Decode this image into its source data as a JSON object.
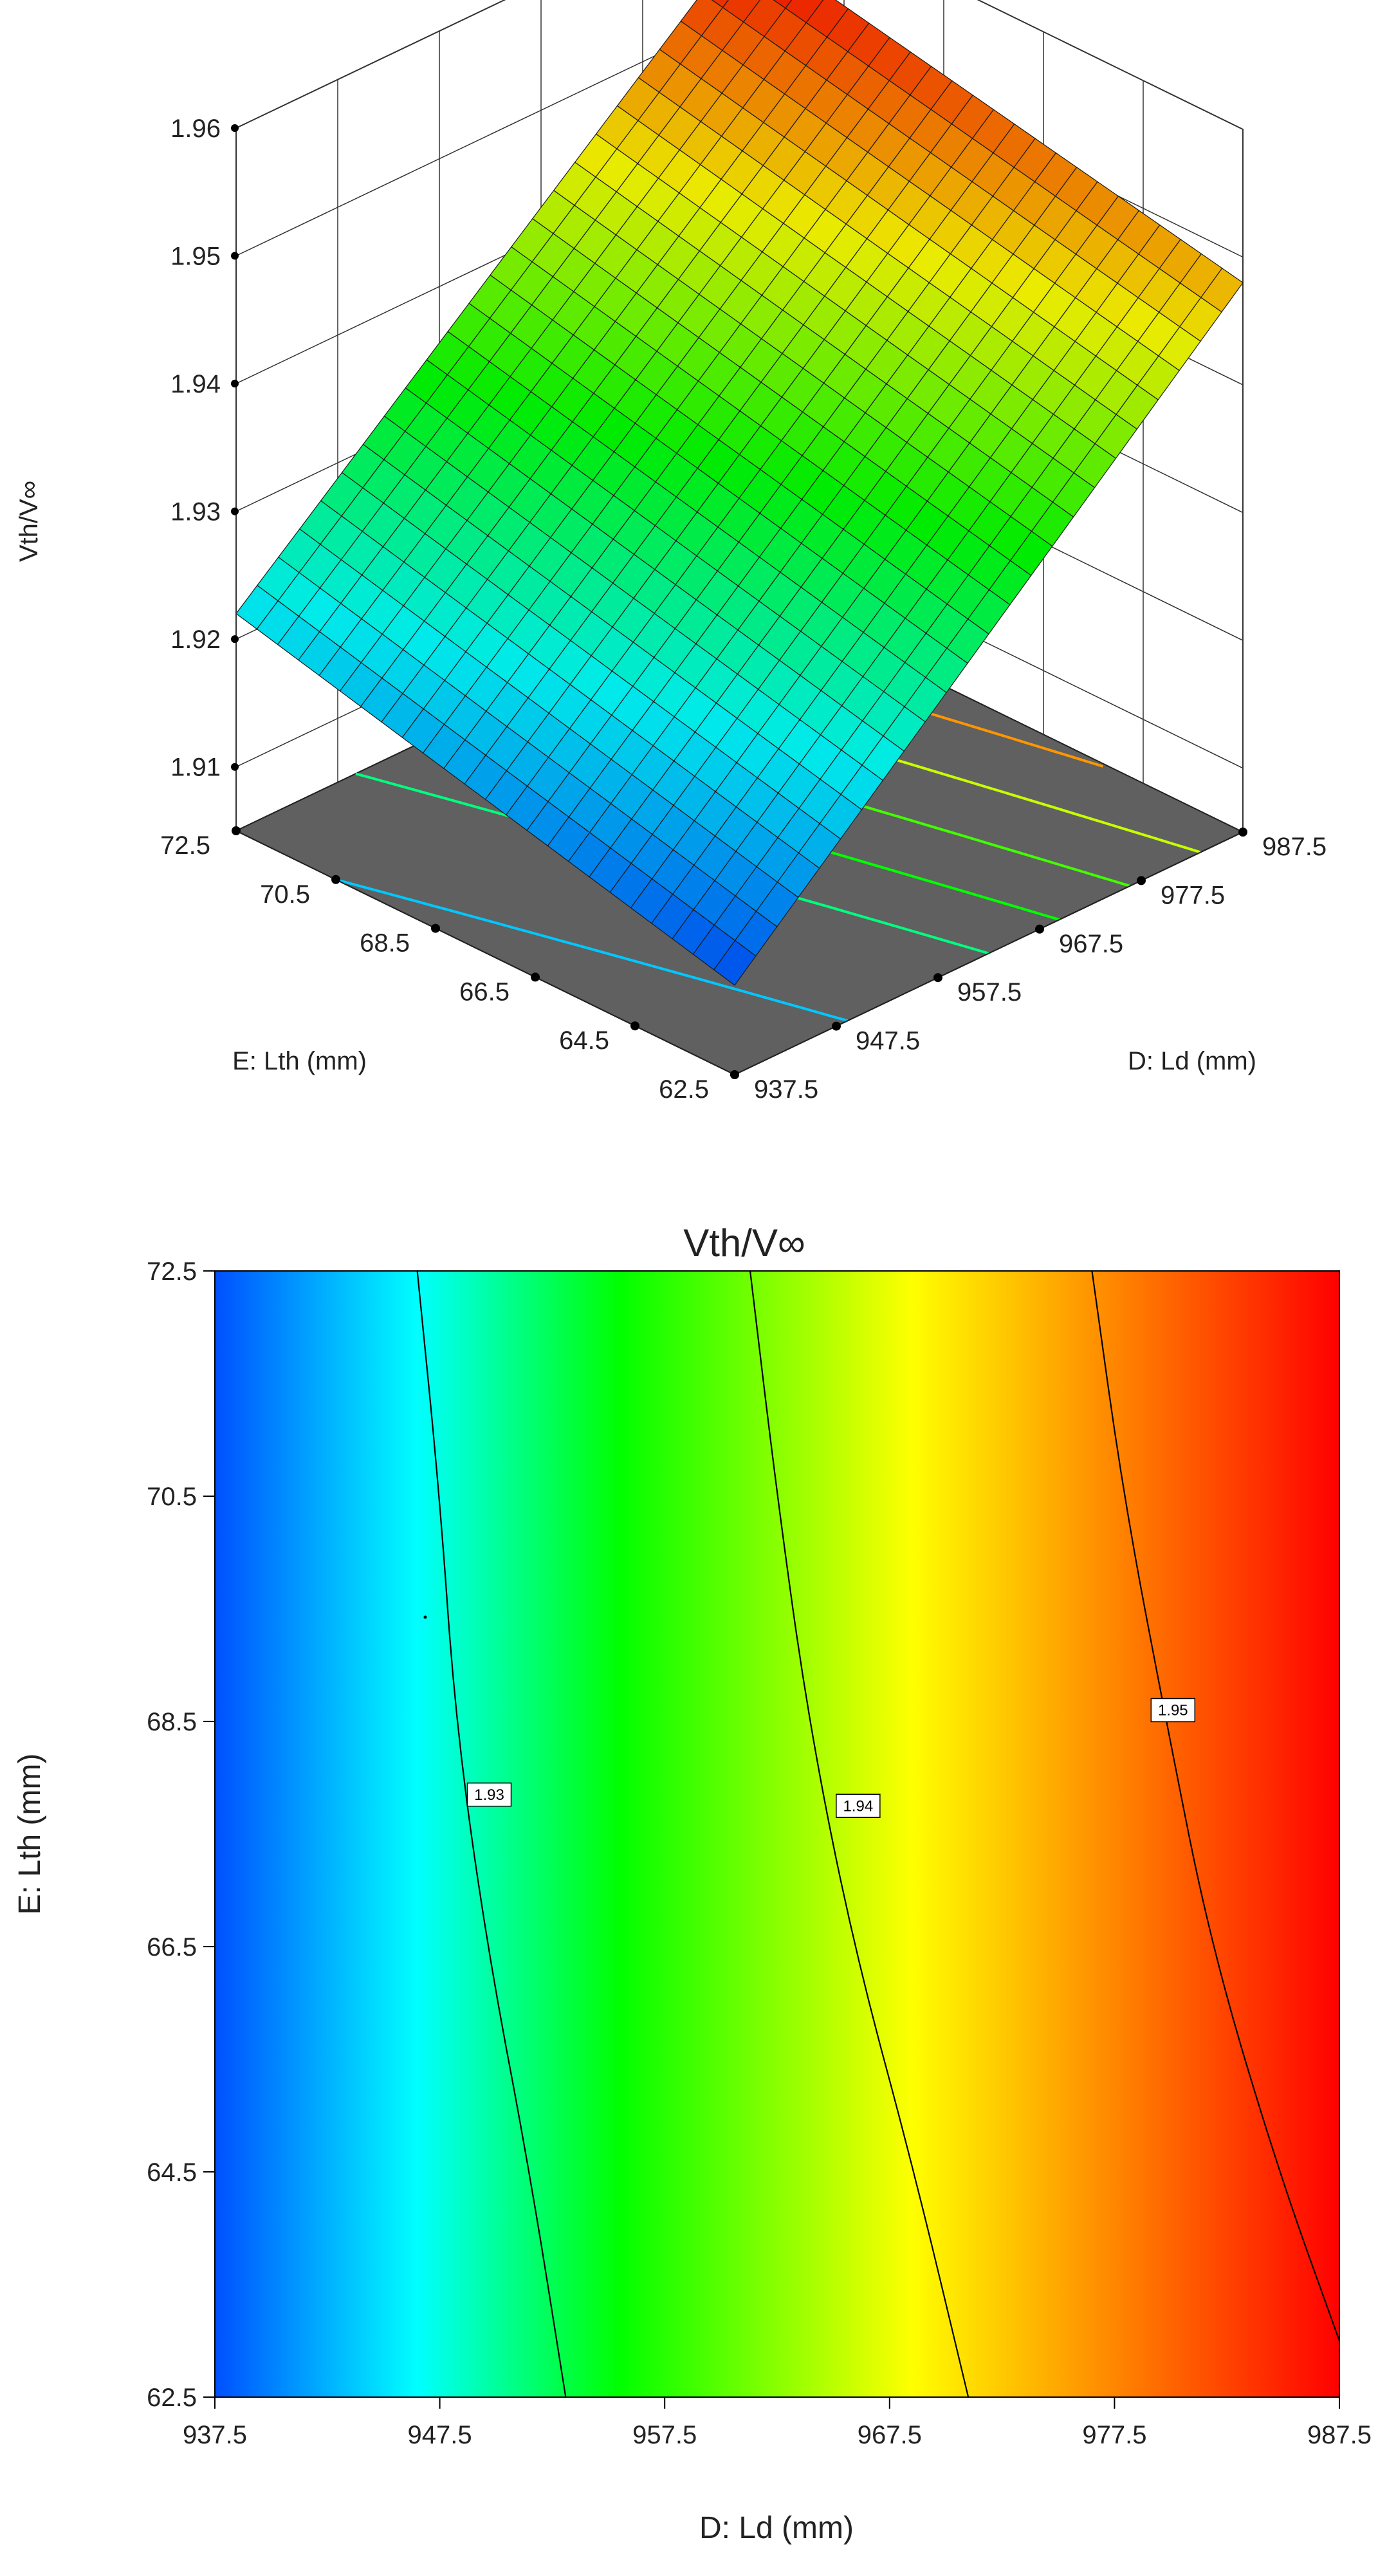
{
  "chart_data": [
    {
      "type": "surface",
      "zlabel": "Vth/V∞",
      "xlabel": "D: Ld (mm)",
      "ylabel": "E: Lth (mm)",
      "x_ticks": [
        "937.5",
        "947.5",
        "957.5",
        "967.5",
        "977.5",
        "987.5"
      ],
      "y_ticks": [
        "62.5",
        "64.5",
        "66.5",
        "68.5",
        "70.5",
        "72.5"
      ],
      "z_ticks": [
        "1.91",
        "1.92",
        "1.93",
        "1.94",
        "1.95",
        "1.96"
      ],
      "xlim": [
        937.5,
        987.5
      ],
      "ylim": [
        62.5,
        72.5
      ],
      "zlim": [
        1.905,
        1.96
      ],
      "corner_values": [
        {
          "x": 937.5,
          "y": 62.5,
          "z": 1.912
        },
        {
          "x": 987.5,
          "y": 62.5,
          "z": 1.948
        },
        {
          "x": 937.5,
          "y": 72.5,
          "z": 1.922
        },
        {
          "x": 987.5,
          "y": 72.5,
          "z": 1.956
        }
      ],
      "colormap": [
        "#0050ff",
        "#00ffff",
        "#00ff00",
        "#ffff00",
        "#ff0000"
      ],
      "floor_color": "#606060"
    },
    {
      "type": "contour",
      "title": "Vth/V∞",
      "xlabel": "D: Ld (mm)",
      "ylabel": "E: Lth (mm)",
      "x_ticks": [
        "937.5",
        "947.5",
        "957.5",
        "967.5",
        "977.5",
        "987.5"
      ],
      "y_ticks": [
        "62.5",
        "64.5",
        "66.5",
        "68.5",
        "70.5",
        "72.5"
      ],
      "xlim": [
        937.5,
        987.5
      ],
      "ylim": [
        62.5,
        72.5
      ],
      "contour_labels": [
        "1.93",
        "1.94",
        "1.95"
      ],
      "contours": [
        {
          "level": 1.93,
          "label_at": {
            "x": 949.7,
            "y": 67.85
          },
          "points": [
            [
              946.5,
              72.5
            ],
            [
              947.5,
              70.5
            ],
            [
              948.2,
              68.5
            ],
            [
              949.6,
              66.5
            ],
            [
              951.5,
              64.5
            ],
            [
              953.1,
              62.5
            ]
          ]
        },
        {
          "level": 1.94,
          "label_at": {
            "x": 966.1,
            "y": 67.75
          },
          "points": [
            [
              961.3,
              72.5
            ],
            [
              962.5,
              70.5
            ],
            [
              963.9,
              68.5
            ],
            [
              965.9,
              66.5
            ],
            [
              968.6,
              64.5
            ],
            [
              971.0,
              62.5
            ]
          ]
        },
        {
          "level": 1.95,
          "label_at": {
            "x": 980.1,
            "y": 68.6
          },
          "points": [
            [
              976.5,
              72.5
            ],
            [
              977.9,
              70.5
            ],
            [
              979.8,
              68.5
            ],
            [
              981.8,
              66.5
            ],
            [
              984.8,
              64.5
            ],
            [
              987.5,
              63.0
            ]
          ]
        }
      ],
      "colormap": [
        "#0050ff",
        "#00ffff",
        "#00ff00",
        "#ffff00",
        "#ff0000"
      ]
    }
  ]
}
